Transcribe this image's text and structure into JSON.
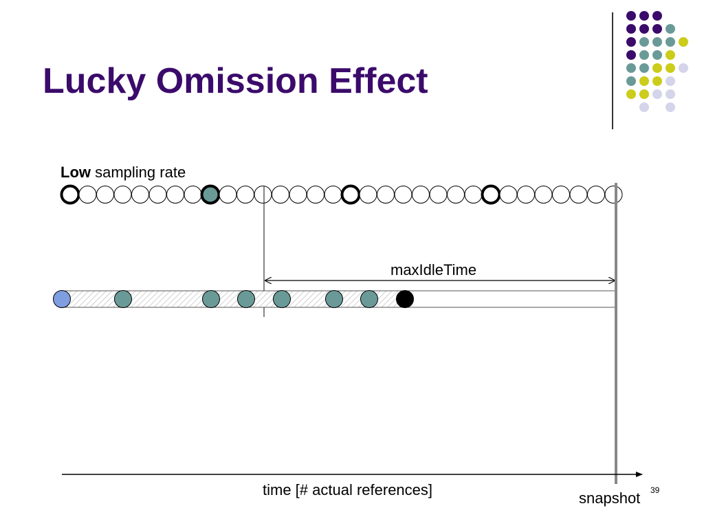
{
  "slide": {
    "title": "Lucky Omission Effect",
    "page_number": "39"
  },
  "colors": {
    "title": "#3b0b6b",
    "purple": "#3b0b6b",
    "teal": "#6a9a98",
    "yellow": "#cccc1a",
    "lavender": "#d4d4ea",
    "sample_fill": "#6a9a98",
    "first_ref": "#7f9ee0",
    "last_ref": "#000000",
    "snapshot_line": "#888888"
  },
  "decoration": {
    "dot_grid": [
      [
        "purple",
        "purple",
        "purple",
        "none",
        "none"
      ],
      [
        "purple",
        "purple",
        "purple",
        "teal",
        "none"
      ],
      [
        "purple",
        "teal",
        "teal",
        "teal",
        "yellow"
      ],
      [
        "purple",
        "teal",
        "teal",
        "yellow",
        "none"
      ],
      [
        "teal",
        "teal",
        "yellow",
        "yellow",
        "lavender"
      ],
      [
        "teal",
        "yellow",
        "yellow",
        "lavender",
        "none"
      ],
      [
        "yellow",
        "yellow",
        "lavender",
        "lavender",
        "none"
      ],
      [
        "none",
        "lavender",
        "none",
        "lavender",
        "none"
      ]
    ]
  },
  "diagram": {
    "sampling_label_bold": "Low",
    "sampling_label_rest": " sampling rate",
    "sample_slot_count": 32,
    "sampled_slots": [
      0,
      8,
      16,
      24
    ],
    "highlighted_sampled_slot": 8,
    "maxidle_label": "maxIdleTime",
    "axis_label": "time [# actual references]",
    "snapshot_label": "snapshot",
    "references": [
      {
        "kind": "first"
      },
      {
        "kind": "normal"
      },
      {
        "kind": "normal"
      },
      {
        "kind": "normal"
      },
      {
        "kind": "normal"
      },
      {
        "kind": "normal"
      },
      {
        "kind": "normal"
      },
      {
        "kind": "last"
      }
    ]
  }
}
